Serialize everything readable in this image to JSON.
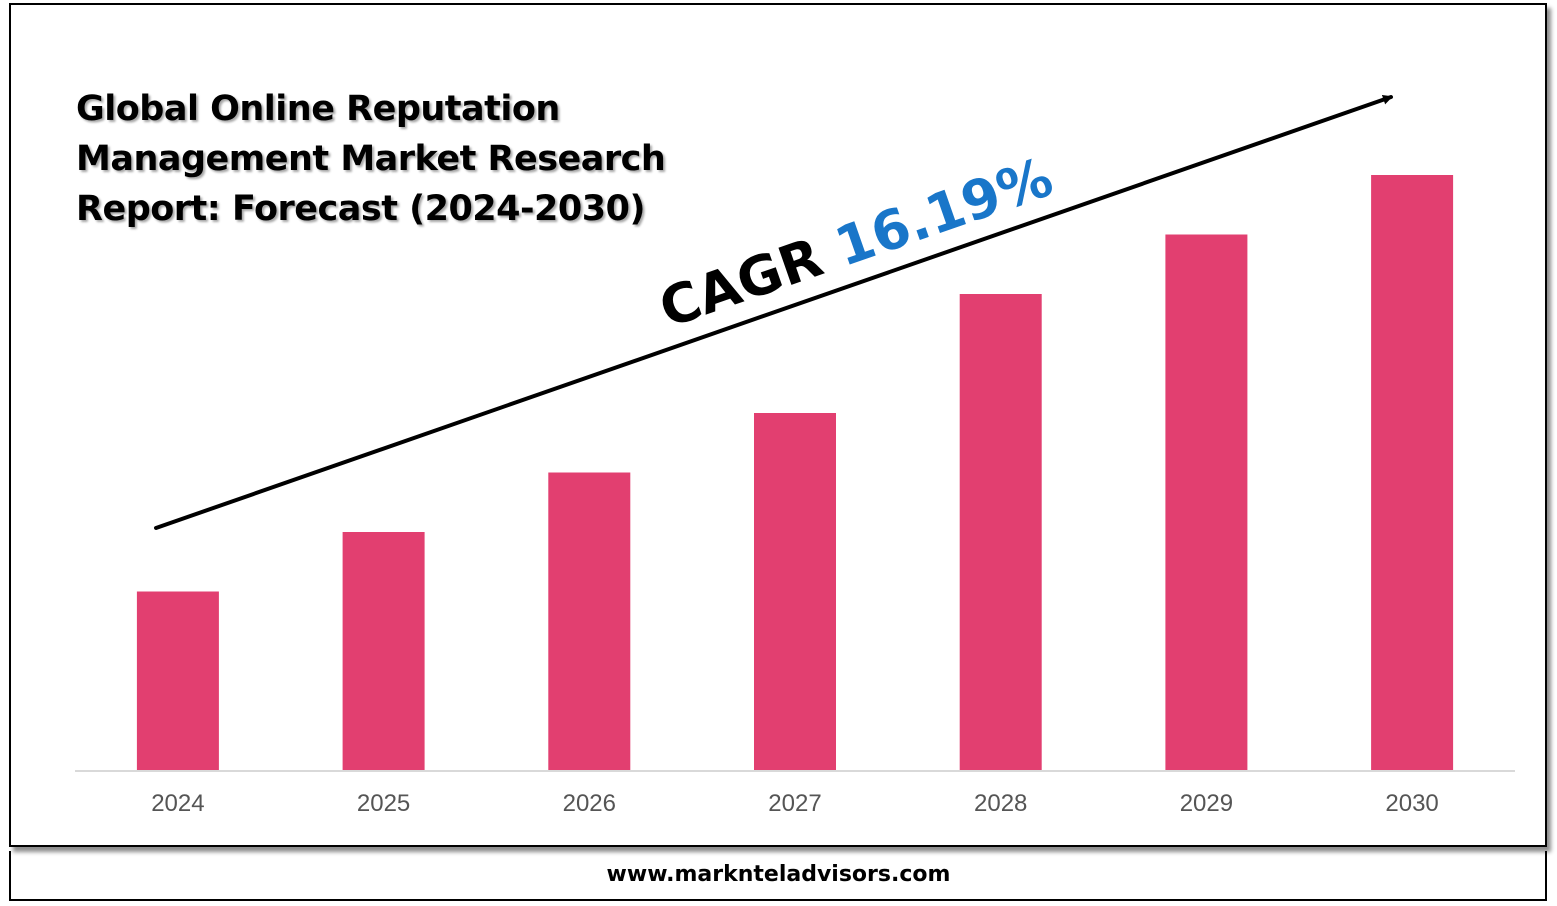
{
  "chart_data": {
    "type": "bar",
    "title": "Global Online Reputation Management Market Research Report: Forecast (2024-2030)",
    "categories": [
      "2024",
      "2025",
      "2026",
      "2027",
      "2028",
      "2029",
      "2030"
    ],
    "values": [
      30,
      40,
      50,
      60,
      80,
      90,
      100
    ],
    "ylim": [
      0,
      100
    ],
    "grid": false,
    "legend": "none",
    "bar_color": "#e23f70",
    "annotation": {
      "label": "CAGR",
      "value": "16.19%",
      "label_color": "#000000",
      "value_color": "#1976c9"
    }
  },
  "footer": {
    "url": "www.marknteladvisors.com"
  }
}
